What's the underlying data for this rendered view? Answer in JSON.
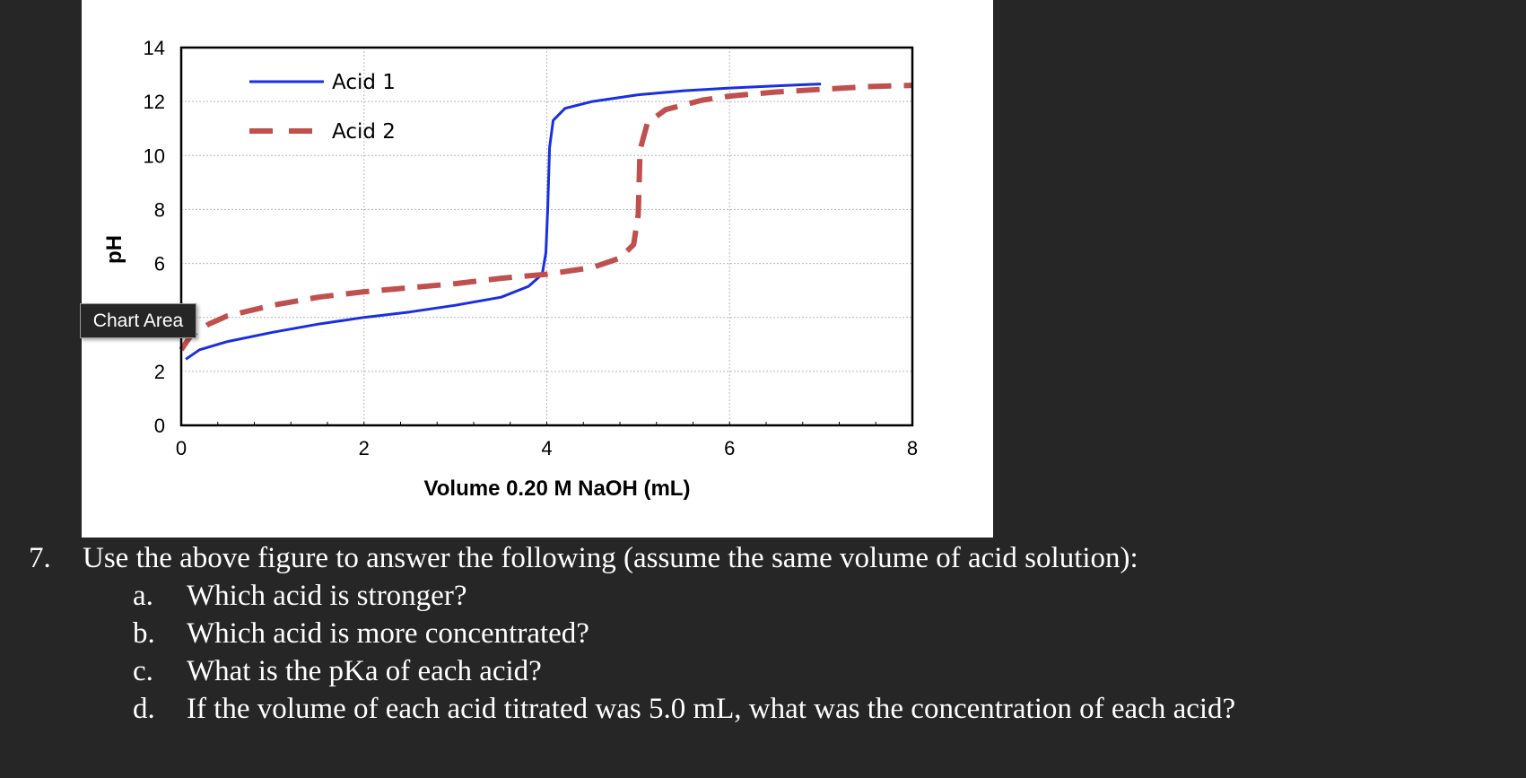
{
  "chart_data": {
    "type": "line",
    "xlabel": "Volume 0.20 M NaOH (mL)",
    "ylabel": "pH",
    "xlim": [
      0,
      8
    ],
    "ylim": [
      0,
      14
    ],
    "x_ticks": [
      0,
      2,
      4,
      6,
      8
    ],
    "y_ticks": [
      0,
      2,
      4,
      6,
      8,
      10,
      12,
      14
    ],
    "grid": true,
    "legend_position": "top-left",
    "series": [
      {
        "name": "Acid 1",
        "style": "solid",
        "color": "#1a2fe0",
        "points": [
          [
            0.05,
            2.45
          ],
          [
            0.2,
            2.8
          ],
          [
            0.5,
            3.1
          ],
          [
            1.0,
            3.45
          ],
          [
            1.5,
            3.75
          ],
          [
            2.0,
            4.0
          ],
          [
            2.5,
            4.2
          ],
          [
            3.0,
            4.45
          ],
          [
            3.5,
            4.75
          ],
          [
            3.8,
            5.15
          ],
          [
            3.95,
            5.6
          ],
          [
            3.99,
            6.4
          ],
          [
            4.01,
            8.0
          ],
          [
            4.03,
            10.3
          ],
          [
            4.07,
            11.3
          ],
          [
            4.2,
            11.75
          ],
          [
            4.5,
            12.0
          ],
          [
            5.0,
            12.25
          ],
          [
            5.5,
            12.4
          ],
          [
            6.0,
            12.5
          ],
          [
            6.5,
            12.58
          ],
          [
            7.0,
            12.65
          ]
        ]
      },
      {
        "name": "Acid 2",
        "style": "dashed",
        "color": "#c0504d",
        "points": [
          [
            0.0,
            2.8
          ],
          [
            0.1,
            3.3
          ],
          [
            0.3,
            3.75
          ],
          [
            0.5,
            4.05
          ],
          [
            1.0,
            4.45
          ],
          [
            1.5,
            4.75
          ],
          [
            2.0,
            4.95
          ],
          [
            2.5,
            5.1
          ],
          [
            3.0,
            5.25
          ],
          [
            3.5,
            5.45
          ],
          [
            4.0,
            5.6
          ],
          [
            4.5,
            5.85
          ],
          [
            4.8,
            6.2
          ],
          [
            4.95,
            6.7
          ],
          [
            5.0,
            7.8
          ],
          [
            5.01,
            8.9
          ],
          [
            5.02,
            10.2
          ],
          [
            5.1,
            11.2
          ],
          [
            5.3,
            11.7
          ],
          [
            5.7,
            12.05
          ],
          [
            6.0,
            12.2
          ],
          [
            6.5,
            12.35
          ],
          [
            7.0,
            12.45
          ],
          [
            7.5,
            12.55
          ],
          [
            8.0,
            12.6
          ]
        ]
      }
    ]
  },
  "tooltip": {
    "label": "Chart Area"
  },
  "question": {
    "number": "7.",
    "text": "Use the above figure to answer the following (assume the same volume of acid solution):",
    "items": [
      {
        "letter": "a.",
        "text": "Which acid is stronger?"
      },
      {
        "letter": "b.",
        "text": "Which acid is more concentrated?"
      },
      {
        "letter": "c.",
        "text": "What is the pKa of each acid?"
      },
      {
        "letter": "d.",
        "text": "If the volume of each acid titrated was 5.0 mL, what was the concentration of each acid?"
      }
    ]
  }
}
